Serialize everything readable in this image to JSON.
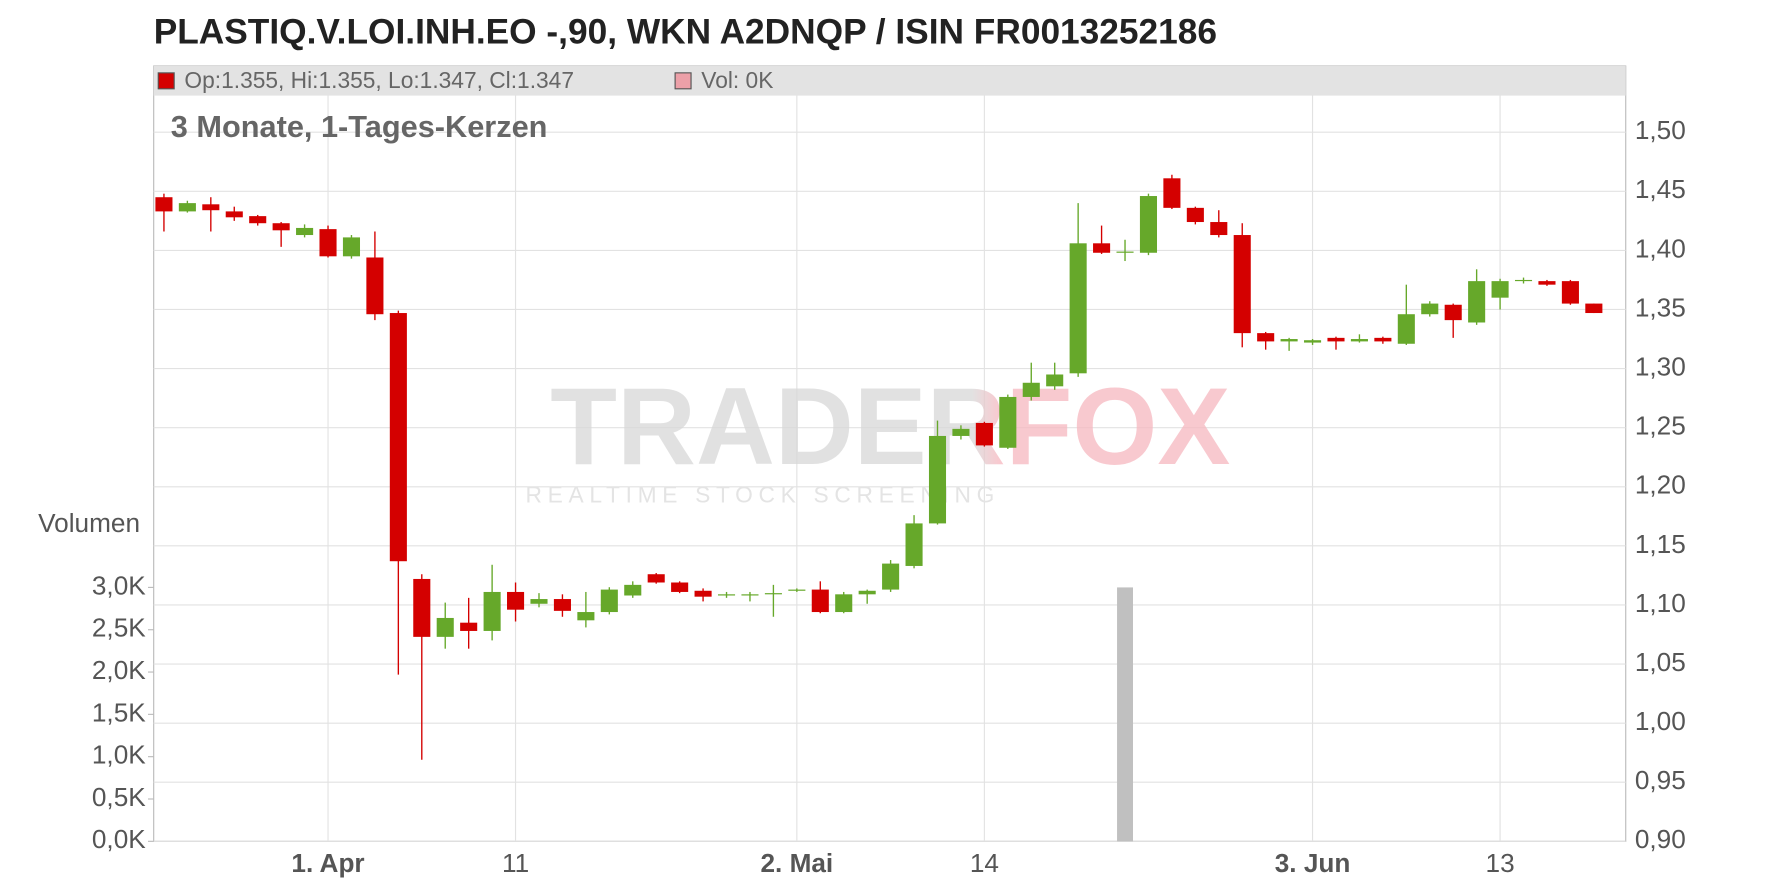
{
  "chart_data": {
    "type": "candlestick",
    "title": "PLASTIQ.V.LOI.INH.EO -,90, WKN A2DNQP / ISIN FR0013252186",
    "subtitle": "3 Monate, 1-Tages-Kerzen",
    "legend": {
      "ohlc": "Op:1.355, Hi:1.355, Lo:1.347, Cl:1.347",
      "volume": "Vol: 0K"
    },
    "watermark": {
      "brand": "TRADERFOX",
      "tagline": "REALTIME STOCK SCREENING"
    },
    "y2_label": "Volumen",
    "categories": [
      null,
      null,
      null,
      null,
      null,
      null,
      null,
      "1. Apr",
      null,
      null,
      null,
      null,
      null,
      null,
      null,
      "11",
      null,
      null,
      null,
      null,
      null,
      null,
      null,
      null,
      null,
      null,
      null,
      "2. Mai",
      null,
      null,
      null,
      null,
      null,
      null,
      null,
      "14",
      null,
      null,
      null,
      null,
      null,
      null,
      null,
      null,
      null,
      null,
      null,
      null,
      null,
      "3. Jun",
      null,
      null,
      null,
      null,
      null,
      null,
      null,
      "13",
      null,
      null,
      null,
      null
    ],
    "open": [
      1.445,
      1.433,
      1.439,
      1.433,
      1.429,
      1.423,
      1.413,
      1.418,
      1.395,
      1.394,
      1.347,
      1.122,
      1.073,
      1.085,
      1.078,
      1.111,
      1.101,
      1.105,
      1.087,
      1.094,
      1.108,
      1.126,
      1.119,
      1.112,
      1.108,
      1.108,
      1.109,
      1.112,
      1.113,
      1.094,
      1.109,
      1.113,
      1.133,
      1.169,
      1.243,
      1.254,
      1.233,
      1.276,
      1.285,
      1.296,
      1.406,
      1.398,
      1.398,
      1.461,
      1.436,
      1.424,
      1.413,
      1.33,
      1.323,
      1.322,
      1.326,
      1.323,
      1.326,
      1.321,
      1.346,
      1.354,
      1.339,
      1.36,
      1.374,
      1.374,
      1.374,
      1.355
    ],
    "high": [
      1.448,
      1.442,
      1.445,
      1.437,
      1.43,
      1.424,
      1.422,
      1.421,
      1.413,
      1.416,
      1.349,
      1.126,
      1.102,
      1.106,
      1.134,
      1.119,
      1.11,
      1.109,
      1.111,
      1.115,
      1.12,
      1.127,
      1.12,
      1.114,
      1.111,
      1.111,
      1.117,
      1.114,
      1.12,
      1.111,
      1.113,
      1.138,
      1.176,
      1.256,
      1.252,
      1.255,
      1.278,
      1.305,
      1.305,
      1.44,
      1.421,
      1.409,
      1.448,
      1.464,
      1.437,
      1.434,
      1.423,
      1.331,
      1.326,
      1.325,
      1.327,
      1.329,
      1.327,
      1.371,
      1.357,
      1.355,
      1.384,
      1.376,
      1.377,
      1.375,
      1.375,
      1.355
    ],
    "low": [
      1.416,
      1.432,
      1.416,
      1.425,
      1.421,
      1.403,
      1.411,
      1.394,
      1.393,
      1.341,
      1.041,
      0.969,
      1.063,
      1.063,
      1.07,
      1.086,
      1.098,
      1.09,
      1.081,
      1.092,
      1.106,
      1.118,
      1.11,
      1.103,
      1.106,
      1.103,
      1.09,
      1.111,
      1.093,
      1.093,
      1.101,
      1.111,
      1.131,
      1.168,
      1.24,
      1.234,
      1.232,
      1.273,
      1.282,
      1.293,
      1.397,
      1.391,
      1.396,
      1.435,
      1.422,
      1.411,
      1.318,
      1.316,
      1.315,
      1.32,
      1.316,
      1.322,
      1.321,
      1.32,
      1.344,
      1.326,
      1.337,
      1.35,
      1.372,
      1.37,
      1.354,
      1.347
    ],
    "close": [
      1.433,
      1.44,
      1.434,
      1.428,
      1.423,
      1.417,
      1.419,
      1.395,
      1.411,
      1.346,
      1.137,
      1.073,
      1.089,
      1.078,
      1.111,
      1.096,
      1.105,
      1.095,
      1.094,
      1.113,
      1.117,
      1.119,
      1.111,
      1.107,
      1.109,
      1.109,
      1.11,
      1.113,
      1.094,
      1.109,
      1.112,
      1.135,
      1.169,
      1.243,
      1.249,
      1.235,
      1.276,
      1.288,
      1.295,
      1.406,
      1.398,
      1.399,
      1.446,
      1.436,
      1.424,
      1.413,
      1.33,
      1.323,
      1.325,
      1.324,
      1.323,
      1.325,
      1.323,
      1.346,
      1.355,
      1.341,
      1.374,
      1.374,
      1.375,
      1.371,
      1.355,
      1.347
    ],
    "volume": [
      0,
      0,
      0,
      0,
      0,
      0,
      0,
      0,
      0,
      0,
      0,
      0,
      0,
      0,
      0,
      0,
      0,
      0,
      0,
      0,
      0,
      0,
      0,
      0,
      0,
      0,
      0,
      0,
      0,
      0,
      0,
      0,
      0,
      0,
      0,
      0,
      0,
      0,
      0,
      0,
      0,
      3000,
      0,
      0,
      0,
      0,
      0,
      0,
      0,
      0,
      0,
      0,
      0,
      0,
      0,
      0,
      0,
      0,
      0,
      0,
      0,
      0
    ],
    "up_color": "#66a82a",
    "down_color": "#d40000",
    "volume_color": "#c0c0c0",
    "ylim": [
      0.9,
      1.556
    ],
    "yticks": [
      {
        "value": 0.9,
        "label": "0,90"
      },
      {
        "value": 0.95,
        "label": "0,95"
      },
      {
        "value": 1.0,
        "label": "1,00"
      },
      {
        "value": 1.05,
        "label": "1,05"
      },
      {
        "value": 1.1,
        "label": "1,10"
      },
      {
        "value": 1.15,
        "label": "1,15"
      },
      {
        "value": 1.2,
        "label": "1,20"
      },
      {
        "value": 1.25,
        "label": "1,25"
      },
      {
        "value": 1.3,
        "label": "1,30"
      },
      {
        "value": 1.35,
        "label": "1,35"
      },
      {
        "value": 1.4,
        "label": "1,40"
      },
      {
        "value": 1.45,
        "label": "1,45"
      },
      {
        "value": 1.5,
        "label": "1,50"
      }
    ],
    "y2lim": [
      0,
      9160
    ],
    "y2ticks": [
      {
        "value": 0,
        "label": "0,0K"
      },
      {
        "value": 500,
        "label": "0,5K"
      },
      {
        "value": 1000,
        "label": "1,0K"
      },
      {
        "value": 1500,
        "label": "1,5K"
      },
      {
        "value": 2000,
        "label": "2,0K"
      },
      {
        "value": 2500,
        "label": "2,5K"
      },
      {
        "value": 3000,
        "label": "3,0K"
      }
    ],
    "grid": true
  }
}
